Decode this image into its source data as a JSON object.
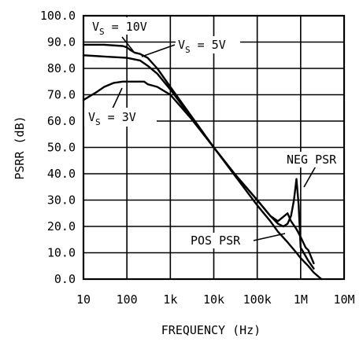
{
  "chart_data": {
    "type": "line",
    "xlabel": "FREQUENCY (Hz)",
    "ylabel": "PSRR (dB)",
    "x_scale": "log",
    "xlim": [
      10,
      10000000
    ],
    "ylim": [
      0,
      100
    ],
    "grid": true,
    "x_ticks": [
      {
        "value": 10,
        "label": "10"
      },
      {
        "value": 100,
        "label": "100"
      },
      {
        "value": 1000,
        "label": "1k"
      },
      {
        "value": 10000,
        "label": "10k"
      },
      {
        "value": 100000,
        "label": "100k"
      },
      {
        "value": 1000000,
        "label": "1M"
      },
      {
        "value": 10000000,
        "label": "10M"
      }
    ],
    "y_ticks": [
      {
        "value": 0,
        "label": "0.0"
      },
      {
        "value": 10,
        "label": "10.0"
      },
      {
        "value": 20,
        "label": "20.0"
      },
      {
        "value": 30,
        "label": "30.0"
      },
      {
        "value": 40,
        "label": "40.0"
      },
      {
        "value": 50,
        "label": "50.0"
      },
      {
        "value": 60,
        "label": "60.0"
      },
      {
        "value": 70,
        "label": "70.0"
      },
      {
        "value": 80,
        "label": "80.0"
      },
      {
        "value": 90,
        "label": "90.0"
      },
      {
        "value": 100,
        "label": "100.0"
      }
    ],
    "series": [
      {
        "x": [
          10,
          30,
          80,
          100,
          120,
          150,
          200,
          300,
          500,
          1000,
          3000,
          10000,
          30000,
          100000,
          200000,
          300000,
          400000,
          500000,
          600000,
          700000,
          800000,
          900000,
          1000000,
          1500000,
          2000000
        ],
        "y": [
          89,
          89,
          88.5,
          88,
          87,
          86,
          85.5,
          84,
          80,
          73,
          62,
          50,
          40,
          30,
          24,
          21,
          20,
          21,
          24,
          30,
          38,
          28,
          12,
          7,
          4
        ]
      },
      {
        "x": [
          10,
          30,
          100,
          200,
          300,
          500,
          1000,
          3000,
          10000,
          30000,
          100000,
          200000,
          300000,
          500000,
          800000,
          1000000,
          1500000,
          2000000,
          3000000
        ],
        "y": [
          85,
          84.5,
          84,
          83,
          81,
          78,
          72,
          61.5,
          50,
          39.5,
          28,
          22,
          18,
          14,
          10,
          8,
          5,
          2.5,
          0
        ]
      },
      {
        "x": [
          10,
          20,
          30,
          50,
          80,
          100,
          150,
          250,
          300,
          500,
          1000,
          3000,
          10000,
          30000,
          100000,
          200000,
          300000,
          500000,
          600000,
          800000,
          1000000,
          1300000,
          1500000,
          2000000
        ],
        "y": [
          68,
          71,
          73,
          74.5,
          75,
          75,
          75,
          75,
          74,
          73,
          70,
          61,
          50,
          40,
          30,
          24,
          22,
          25,
          22,
          19,
          16,
          12,
          11,
          6
        ]
      }
    ],
    "annotations": [
      {
        "text": "V",
        "sub": "S",
        "rest": " = 10V"
      },
      {
        "text": "V",
        "sub": "S",
        "rest": " = 5V"
      },
      {
        "text": "V",
        "sub": "S",
        "rest": " = 3V"
      },
      {
        "text": "NEG PSR"
      },
      {
        "text": "POS PSR"
      }
    ]
  }
}
